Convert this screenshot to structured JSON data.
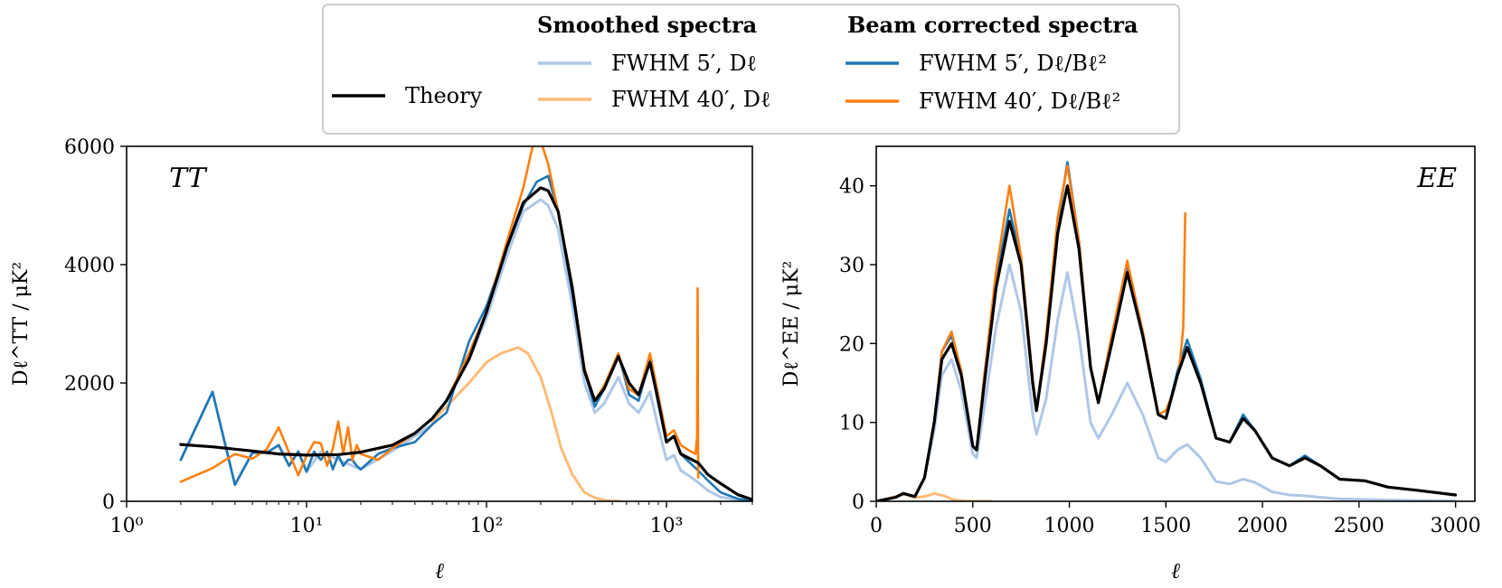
{
  "legend": {
    "group1_title": "Smoothed spectra",
    "group2_title": "Beam corrected spectra",
    "items": [
      {
        "key": "theory",
        "label": "Theory",
        "color": "#000000"
      },
      {
        "key": "s5",
        "label": "FWHM 5′, Dℓ",
        "color": "#aec7e8"
      },
      {
        "key": "s40",
        "label": "FWHM 40′, Dℓ",
        "color": "#ffbb78"
      },
      {
        "key": "b5",
        "label": "FWHM 5′, Dℓ/Bℓ²",
        "color": "#1f77b4"
      },
      {
        "key": "b40",
        "label": "FWHM 40′, Dℓ/Bℓ²",
        "color": "#ff7f0e"
      }
    ]
  },
  "chart_data": [
    {
      "type": "line",
      "panel_label": "TT",
      "xscale": "log",
      "xlabel": "ℓ",
      "ylabel": "Dℓ^TT / μK²",
      "xlim": [
        1,
        3000
      ],
      "ylim": [
        0,
        6000
      ],
      "xticks": [
        1,
        10,
        100,
        1000
      ],
      "xtick_labels": [
        "10⁰",
        "10¹",
        "10²",
        "10³"
      ],
      "yticks": [
        0,
        2000,
        4000,
        6000
      ],
      "ytick_labels": [
        "0",
        "2000",
        "4000",
        "6000"
      ],
      "series": [
        {
          "name": "Theory",
          "key": "theory",
          "x": [
            2,
            3,
            5,
            7,
            10,
            15,
            20,
            30,
            40,
            50,
            60,
            80,
            100,
            130,
            160,
            200,
            220,
            250,
            300,
            350,
            400,
            450,
            540,
            620,
            700,
            810,
            900,
            1000,
            1100,
            1200,
            1350,
            1500,
            1700,
            2000,
            2500,
            3000
          ],
          "y": [
            960,
            920,
            850,
            800,
            780,
            790,
            830,
            950,
            1150,
            1400,
            1700,
            2400,
            3200,
            4300,
            5050,
            5300,
            5250,
            4900,
            3600,
            2200,
            1700,
            1900,
            2450,
            2000,
            1800,
            2350,
            1700,
            1000,
            1100,
            800,
            720,
            650,
            450,
            300,
            110,
            30
          ]
        },
        {
          "name": "FWHM 5′, Dℓ",
          "key": "s5",
          "x": [
            2,
            3,
            4,
            5,
            6,
            7,
            8,
            9,
            10,
            12,
            15,
            20,
            30,
            50,
            80,
            100,
            130,
            160,
            200,
            220,
            250,
            300,
            350,
            400,
            450,
            540,
            620,
            700,
            810,
            900,
            1000,
            1100,
            1200,
            1350,
            1500,
            1700,
            2000,
            2500,
            3000
          ],
          "y": [
            700,
            1850,
            280,
            820,
            820,
            950,
            600,
            840,
            500,
            840,
            700,
            540,
            850,
            1300,
            2400,
            3100,
            4150,
            4900,
            5100,
            5000,
            4600,
            3300,
            2000,
            1500,
            1650,
            2100,
            1650,
            1500,
            1850,
            1250,
            700,
            780,
            520,
            420,
            320,
            180,
            70,
            20,
            10
          ]
        },
        {
          "name": "FWHM 40′, Dℓ",
          "key": "s40",
          "x": [
            50,
            80,
            100,
            120,
            150,
            170,
            200,
            230,
            260,
            300,
            350,
            400,
            450,
            500,
            550
          ],
          "y": [
            1350,
            2000,
            2350,
            2500,
            2600,
            2500,
            2100,
            1500,
            900,
            450,
            150,
            60,
            20,
            5,
            0
          ]
        },
        {
          "name": "FWHM 5′, Dℓ/Bℓ²",
          "key": "b5",
          "x": [
            2,
            3,
            4,
            5,
            6,
            7,
            8,
            9,
            10,
            11,
            12,
            13,
            14,
            15,
            16,
            17,
            18,
            19,
            20,
            25,
            30,
            40,
            50,
            60,
            80,
            100,
            130,
            160,
            190,
            220,
            250,
            300,
            350,
            400,
            450,
            540,
            620,
            700,
            810,
            900,
            1000,
            1100,
            1200,
            1350,
            1500,
            1700,
            2000,
            2500,
            3000
          ],
          "y": [
            700,
            1850,
            280,
            820,
            820,
            950,
            600,
            840,
            500,
            840,
            700,
            840,
            540,
            780,
            600,
            700,
            700,
            600,
            540,
            800,
            900,
            1000,
            1300,
            1500,
            2700,
            3300,
            4300,
            5000,
            5400,
            5500,
            4900,
            3500,
            2200,
            1600,
            1900,
            2500,
            1800,
            1700,
            2400,
            1650,
            1000,
            1100,
            800,
            650,
            520,
            350,
            150,
            40,
            10
          ]
        },
        {
          "name": "FWHM 40′, Dℓ/Bℓ²",
          "key": "b40",
          "x": [
            2,
            3,
            4,
            5,
            6,
            7,
            8,
            9,
            10,
            11,
            12,
            13,
            14,
            15,
            16,
            17,
            18,
            19,
            20,
            25,
            30,
            40,
            50,
            60,
            80,
            100,
            130,
            160,
            190,
            220,
            250,
            300,
            350,
            400,
            450,
            540,
            620,
            700,
            810,
            900,
            1000,
            1100,
            1200,
            1350,
            1450,
            1480,
            1490,
            1500
          ],
          "y": [
            330,
            560,
            800,
            720,
            880,
            1250,
            820,
            440,
            770,
            1000,
            980,
            600,
            900,
            1350,
            800,
            1250,
            700,
            950,
            800,
            700,
            900,
            1150,
            1400,
            1700,
            2500,
            3200,
            4400,
            5300,
            6300,
            5700,
            4900,
            3600,
            2250,
            1700,
            1950,
            2500,
            1900,
            1800,
            2500,
            1800,
            1100,
            1200,
            950,
            850,
            800,
            1100,
            3600,
            400
          ]
        }
      ]
    },
    {
      "type": "line",
      "panel_label": "EE",
      "xscale": "linear",
      "xlabel": "ℓ",
      "ylabel": "Dℓ^EE / μK²",
      "xlim": [
        0,
        3100
      ],
      "ylim": [
        0,
        45
      ],
      "xticks": [
        0,
        500,
        1000,
        1500,
        2000,
        2500,
        3000
      ],
      "xtick_labels": [
        "0",
        "500",
        "1000",
        "1500",
        "2000",
        "2500",
        "3000"
      ],
      "yticks": [
        0,
        10,
        20,
        30,
        40
      ],
      "ytick_labels": [
        "0",
        "10",
        "20",
        "30",
        "40"
      ],
      "series": [
        {
          "name": "Theory",
          "key": "theory",
          "x": [
            0,
            100,
            140,
            200,
            250,
            300,
            340,
            390,
            440,
            500,
            520,
            560,
            620,
            690,
            750,
            810,
            830,
            880,
            940,
            990,
            1050,
            1110,
            1150,
            1220,
            1300,
            1380,
            1460,
            1500,
            1560,
            1610,
            1680,
            1760,
            1830,
            1900,
            1960,
            2050,
            2140,
            2220,
            2300,
            2400,
            2530,
            2650,
            2800,
            3000
          ],
          "y": [
            0,
            0.5,
            1,
            0.6,
            3,
            10,
            18,
            20,
            16,
            7,
            6.5,
            15,
            27,
            35.5,
            30,
            15,
            11.5,
            20,
            34,
            40,
            32,
            17,
            12.5,
            20,
            29,
            21,
            11,
            10.5,
            16,
            19.5,
            15,
            8,
            7.5,
            10.5,
            9,
            5.5,
            4.5,
            5.5,
            4.5,
            2.8,
            2.6,
            1.8,
            1.4,
            0.8
          ]
        },
        {
          "name": "FWHM 5′, Dℓ",
          "key": "s5",
          "x": [
            0,
            100,
            140,
            200,
            250,
            300,
            340,
            390,
            440,
            500,
            520,
            560,
            620,
            690,
            750,
            810,
            830,
            880,
            940,
            990,
            1050,
            1110,
            1150,
            1220,
            1300,
            1380,
            1460,
            1500,
            1560,
            1610,
            1680,
            1760,
            1830,
            1900,
            1960,
            2050,
            2140,
            2220,
            2300,
            2400,
            2600,
            2800,
            3000
          ],
          "y": [
            0,
            0.5,
            1,
            0.6,
            3,
            9,
            16,
            18,
            14,
            6,
            5.5,
            12,
            22,
            30,
            24,
            11,
            8.5,
            13,
            23,
            29,
            21,
            10,
            8,
            11,
            15,
            11,
            5.5,
            5,
            6.5,
            7.2,
            5.5,
            2.5,
            2.2,
            2.8,
            2.4,
            1.2,
            0.8,
            0.7,
            0.5,
            0.3,
            0.2,
            0.1,
            0.05
          ]
        },
        {
          "name": "FWHM 40′, Dℓ",
          "key": "s40",
          "x": [
            0,
            50,
            100,
            150,
            200,
            250,
            300,
            350,
            400,
            450,
            500,
            600
          ],
          "y": [
            0,
            0.3,
            0.6,
            0.9,
            0.5,
            0.6,
            1,
            0.7,
            0.2,
            0.05,
            0,
            0
          ]
        },
        {
          "name": "FWHM 5′, Dℓ/Bℓ²",
          "key": "b5",
          "x": [
            0,
            100,
            140,
            200,
            250,
            300,
            340,
            390,
            440,
            500,
            520,
            560,
            620,
            690,
            750,
            810,
            830,
            880,
            940,
            990,
            1050,
            1110,
            1150,
            1220,
            1300,
            1380,
            1460,
            1500,
            1560,
            1610,
            1680,
            1760,
            1830,
            1900,
            1960,
            2050,
            2140,
            2220,
            2300,
            2400,
            2530,
            2650,
            2800,
            3000
          ],
          "y": [
            0,
            0.5,
            1,
            0.6,
            3,
            10,
            19,
            21,
            16.5,
            7,
            6.5,
            16,
            28,
            37,
            30.5,
            15.5,
            11.5,
            21,
            35,
            43,
            33,
            17,
            12.5,
            21,
            30,
            21.5,
            11,
            10.5,
            16.5,
            20.5,
            15.5,
            8,
            7.5,
            11,
            9,
            5.5,
            4.5,
            5.8,
            4.5,
            2.8,
            2.6,
            1.8,
            1.4,
            0.8
          ]
        },
        {
          "name": "FWHM 40′, Dℓ/Bℓ²",
          "key": "b40",
          "x": [
            0,
            100,
            140,
            200,
            250,
            300,
            340,
            390,
            440,
            500,
            520,
            560,
            620,
            690,
            750,
            810,
            830,
            880,
            940,
            990,
            1050,
            1110,
            1150,
            1220,
            1300,
            1380,
            1460,
            1500,
            1540,
            1570,
            1590,
            1600
          ],
          "y": [
            0,
            0.5,
            1,
            0.6,
            3,
            10,
            19,
            21.5,
            16.5,
            7,
            6.5,
            16,
            29,
            40,
            31,
            15.5,
            11.5,
            21,
            36,
            42.5,
            33,
            17,
            12.5,
            21,
            30.5,
            21.5,
            11,
            11.5,
            14,
            17,
            22,
            36.5
          ]
        }
      ]
    }
  ]
}
